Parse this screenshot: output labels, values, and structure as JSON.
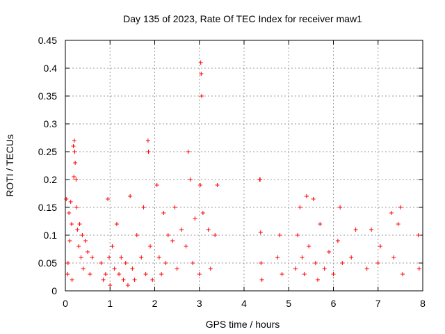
{
  "chart_data": {
    "type": "scatter",
    "title": "Day 135 of 2023, Rate Of TEC Index for receiver maw1",
    "xlabel": "GPS time / hours",
    "ylabel": "ROTI / TECUs",
    "xlim": [
      0,
      8
    ],
    "ylim": [
      0,
      0.45
    ],
    "xticks": [
      "0",
      "1",
      "2",
      "3",
      "4",
      "5",
      "6",
      "7",
      "8"
    ],
    "yticks": [
      "0",
      "0.05",
      "0.1",
      "0.15",
      "0.2",
      "0.25",
      "0.3",
      "0.35",
      "0.4",
      "0.45"
    ],
    "grid": true,
    "marker": "plus",
    "color": "#ff0000",
    "series": [
      {
        "values": [
          [
            0.02,
            0.165
          ],
          [
            0.05,
            0.03
          ],
          [
            0.06,
            0.05
          ],
          [
            0.08,
            0.14
          ],
          [
            0.1,
            0.09
          ],
          [
            0.12,
            0.16
          ],
          [
            0.14,
            0.12
          ],
          [
            0.15,
            0.02
          ],
          [
            0.18,
            0.26
          ],
          [
            0.19,
            0.205
          ],
          [
            0.2,
            0.27
          ],
          [
            0.21,
            0.25
          ],
          [
            0.22,
            0.23
          ],
          [
            0.24,
            0.2
          ],
          [
            0.25,
            0.15
          ],
          [
            0.27,
            0.11
          ],
          [
            0.3,
            0.08
          ],
          [
            0.32,
            0.12
          ],
          [
            0.35,
            0.06
          ],
          [
            0.38,
            0.1
          ],
          [
            0.4,
            0.04
          ],
          [
            0.45,
            0.09
          ],
          [
            0.5,
            0.07
          ],
          [
            0.55,
            0.03
          ],
          [
            0.6,
            0.06
          ],
          [
            0.8,
            0.05
          ],
          [
            0.85,
            0.02
          ],
          [
            0.9,
            0.03
          ],
          [
            0.95,
            0.165
          ],
          [
            0.98,
            0.06
          ],
          [
            1.0,
            0.01
          ],
          [
            1.05,
            0.08
          ],
          [
            1.1,
            0.04
          ],
          [
            1.15,
            0.12
          ],
          [
            1.2,
            0.03
          ],
          [
            1.25,
            0.06
          ],
          [
            1.3,
            0.02
          ],
          [
            1.35,
            0.05
          ],
          [
            1.4,
            0.01
          ],
          [
            1.45,
            0.17
          ],
          [
            1.5,
            0.04
          ],
          [
            1.55,
            0.02
          ],
          [
            1.6,
            0.1
          ],
          [
            1.7,
            0.06
          ],
          [
            1.75,
            0.15
          ],
          [
            1.8,
            0.03
          ],
          [
            1.85,
            0.27
          ],
          [
            1.86,
            0.25
          ],
          [
            1.9,
            0.08
          ],
          [
            1.95,
            0.02
          ],
          [
            2.05,
            0.19
          ],
          [
            2.1,
            0.06
          ],
          [
            2.15,
            0.03
          ],
          [
            2.2,
            0.14
          ],
          [
            2.25,
            0.05
          ],
          [
            2.3,
            0.1
          ],
          [
            2.4,
            0.09
          ],
          [
            2.45,
            0.15
          ],
          [
            2.5,
            0.04
          ],
          [
            2.6,
            0.11
          ],
          [
            2.7,
            0.08
          ],
          [
            2.75,
            0.25
          ],
          [
            2.8,
            0.2
          ],
          [
            2.85,
            0.05
          ],
          [
            2.9,
            0.13
          ],
          [
            3.0,
            0.03
          ],
          [
            3.02,
            0.19
          ],
          [
            3.03,
            0.41
          ],
          [
            3.04,
            0.39
          ],
          [
            3.05,
            0.35
          ],
          [
            3.08,
            0.14
          ],
          [
            3.2,
            0.11
          ],
          [
            3.25,
            0.04
          ],
          [
            3.35,
            0.1
          ],
          [
            3.4,
            0.19
          ],
          [
            4.35,
            0.2
          ],
          [
            4.36,
            0.2
          ],
          [
            4.37,
            0.105
          ],
          [
            4.38,
            0.05
          ],
          [
            4.4,
            0.02
          ],
          [
            4.75,
            0.06
          ],
          [
            4.8,
            0.1
          ],
          [
            4.85,
            0.03
          ],
          [
            5.15,
            0.04
          ],
          [
            5.2,
            0.1
          ],
          [
            5.25,
            0.15
          ],
          [
            5.3,
            0.06
          ],
          [
            5.35,
            0.03
          ],
          [
            5.4,
            0.17
          ],
          [
            5.45,
            0.08
          ],
          [
            5.55,
            0.165
          ],
          [
            5.6,
            0.05
          ],
          [
            5.65,
            0.02
          ],
          [
            5.7,
            0.12
          ],
          [
            5.8,
            0.04
          ],
          [
            5.9,
            0.07
          ],
          [
            6.0,
            0.03
          ],
          [
            6.1,
            0.09
          ],
          [
            6.15,
            0.15
          ],
          [
            6.2,
            0.05
          ],
          [
            6.4,
            0.06
          ],
          [
            6.5,
            0.11
          ],
          [
            6.75,
            0.04
          ],
          [
            6.85,
            0.11
          ],
          [
            7.0,
            0.05
          ],
          [
            7.05,
            0.08
          ],
          [
            7.3,
            0.14
          ],
          [
            7.35,
            0.06
          ],
          [
            7.45,
            0.12
          ],
          [
            7.5,
            0.15
          ],
          [
            7.55,
            0.03
          ],
          [
            7.9,
            0.1
          ],
          [
            7.92,
            0.04
          ]
        ]
      }
    ]
  }
}
